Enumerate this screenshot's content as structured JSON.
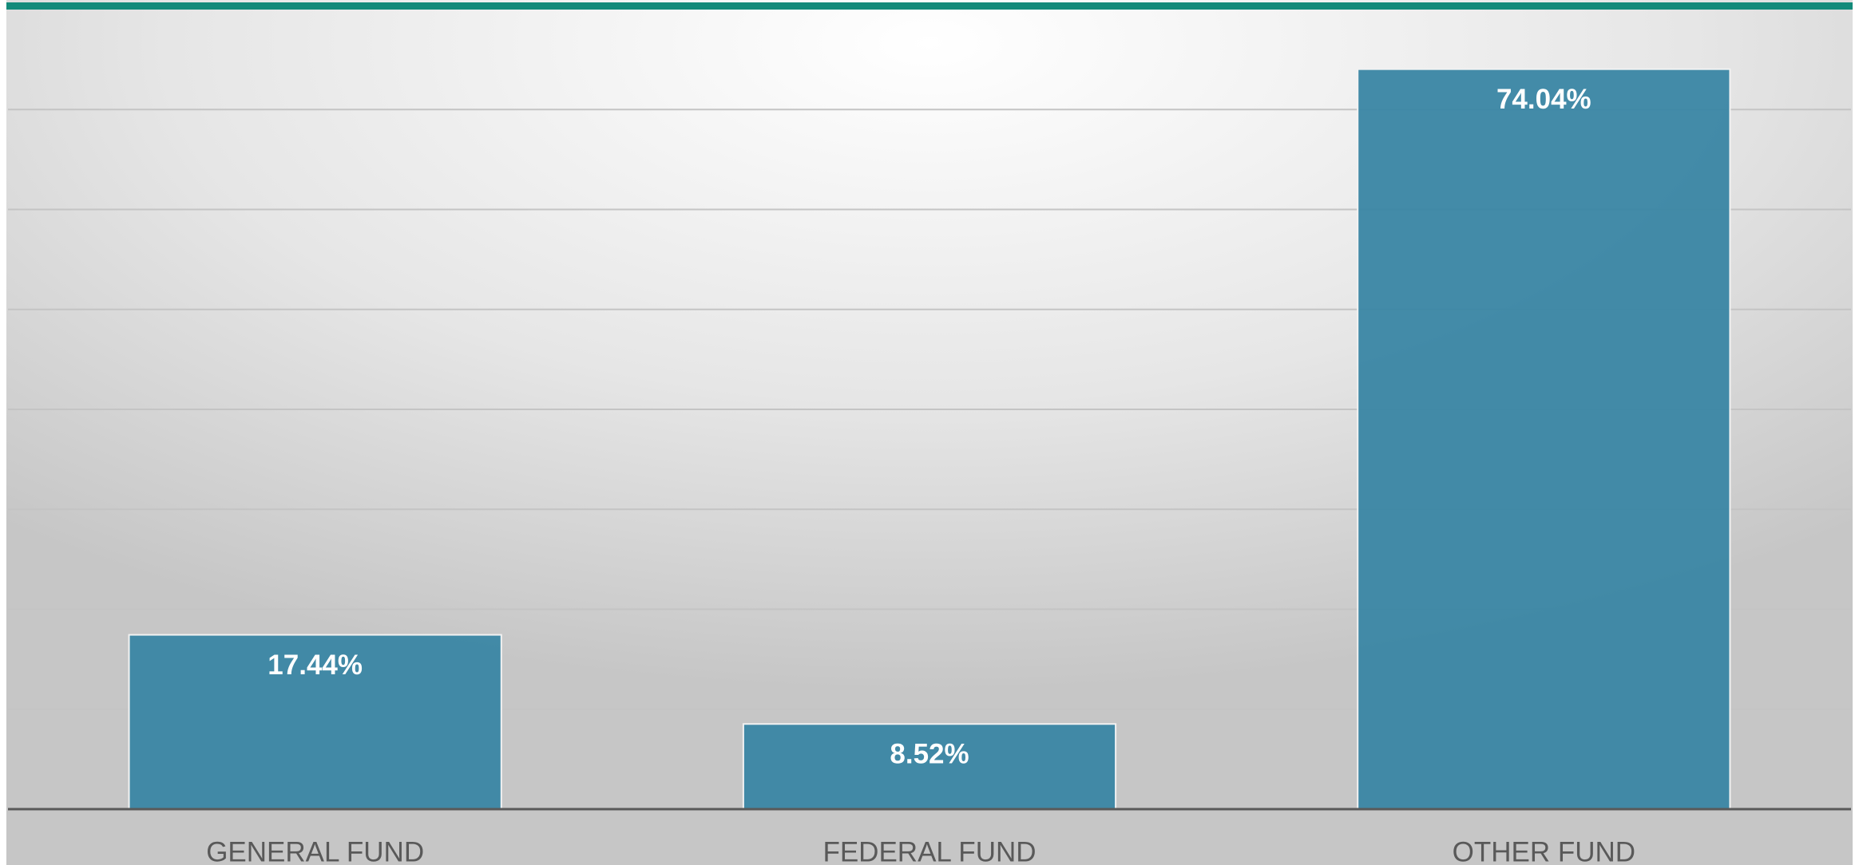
{
  "chart_data": {
    "type": "bar",
    "categories": [
      "GENERAL FUND",
      "FEDERAL FUND",
      "OTHER FUND"
    ],
    "values": [
      17.44,
      8.52,
      74.04
    ],
    "value_labels": [
      "17.44%",
      "8.52%",
      "74.04%"
    ],
    "color": "#3d87a5",
    "ylim": [
      0,
      80
    ],
    "yticks": [
      0,
      10,
      20,
      30,
      40,
      50,
      60,
      70
    ],
    "grid": true
  }
}
